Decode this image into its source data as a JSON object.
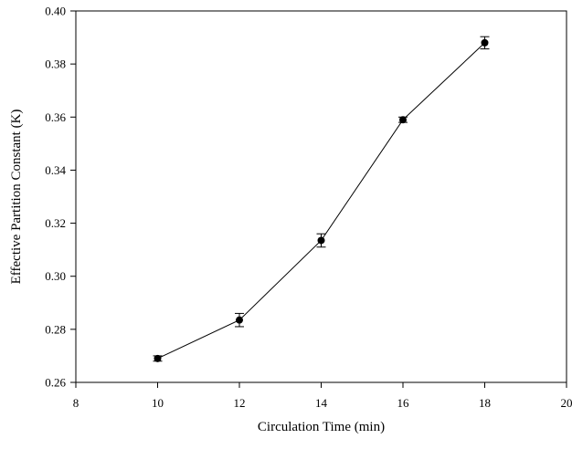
{
  "chart_data": {
    "type": "line",
    "title": "",
    "xlabel": "Circulation Time (min)",
    "ylabel": "Effective Partition Constant (K)",
    "xlim": [
      8,
      20
    ],
    "ylim": [
      0.26,
      0.4
    ],
    "x_ticks": [
      8,
      10,
      12,
      14,
      16,
      18,
      20
    ],
    "y_ticks": [
      0.26,
      0.28,
      0.3,
      0.32,
      0.34,
      0.36,
      0.38,
      0.4
    ],
    "x_tick_labels": [
      "8",
      "10",
      "12",
      "14",
      "16",
      "18",
      "20"
    ],
    "y_tick_labels": [
      "0.26",
      "0.28",
      "0.30",
      "0.32",
      "0.34",
      "0.36",
      "0.38",
      "0.40"
    ],
    "grid": false,
    "legend": "none",
    "series": [
      {
        "x": [
          10,
          12,
          14,
          16,
          18
        ],
        "y": [
          0.269,
          0.2835,
          0.3135,
          0.359,
          0.388
        ],
        "error": [
          0.001,
          0.0025,
          0.0025,
          0.001,
          0.0023
        ],
        "marker": "filled-circle",
        "color": "#000000"
      }
    ]
  }
}
